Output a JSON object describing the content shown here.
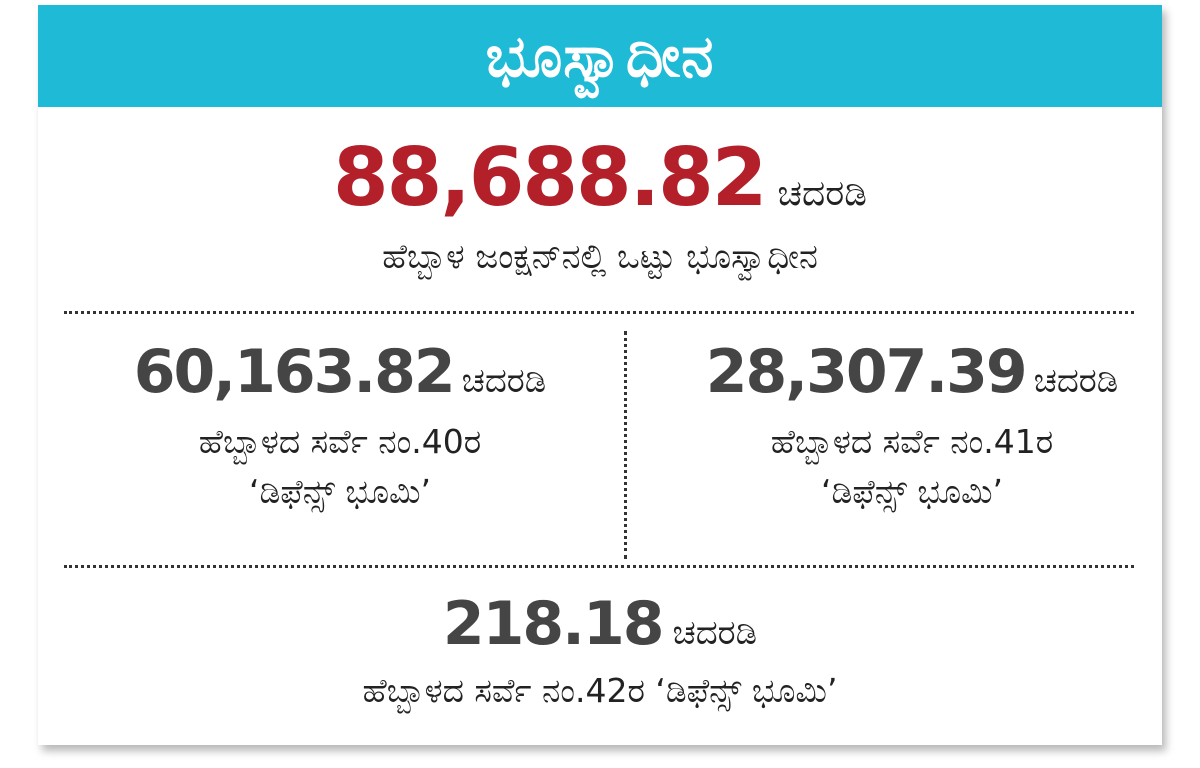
{
  "title": "ಭೂಸ್ವಾಧೀನ",
  "total": {
    "value": "88,688.82",
    "unit": "ಚದರಡಿ",
    "description": "ಹೆಬ್ಬಾಳ ಜಂಕ್ಷನ್‌ನಲ್ಲಿ ಒಟ್ಟು ಭೂಸ್ವಾಧೀನ"
  },
  "survey_40": {
    "value": "60,163.82",
    "unit": "ಚದರಡಿ",
    "line1": "ಹೆಬ್ಬಾಳದ ಸರ್ವೆ ನಂ.40ರ",
    "line2": "‘ಡಿಫೆನ್ಸ್ ಭೂಮಿ’"
  },
  "survey_41": {
    "value": "28,307.39",
    "unit": "ಚದರಡಿ",
    "line1": "ಹೆಬ್ಬಾಳದ ಸರ್ವೆ ನಂ.41ರ",
    "line2": "‘ಡಿಫೆನ್ಸ್ ಭೂಮಿ’"
  },
  "survey_42": {
    "value": "218.18",
    "unit": "ಚದರಡಿ",
    "description": "ಹೆಬ್ಬಾಳದ ಸರ್ವೆ ನಂ.42ರ ‘ಡಿಫೆನ್ಸ್ ಭೂಮಿ’"
  },
  "colors": {
    "header_bg": "#1fbad6",
    "total_value": "#b3202a",
    "sub_value": "#454545"
  }
}
